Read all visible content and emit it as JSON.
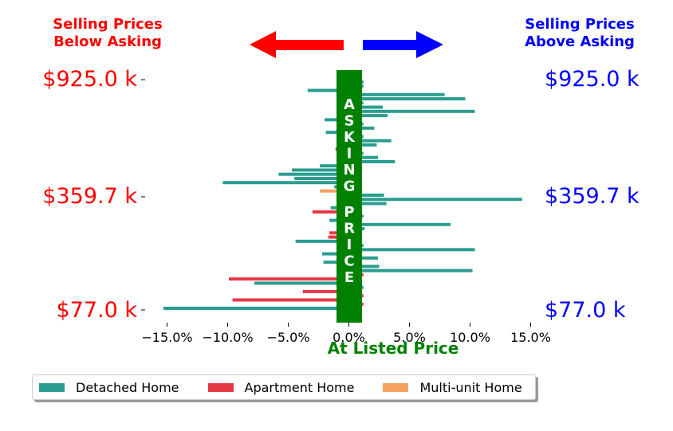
{
  "header": {
    "left_line1": "Selling Prices",
    "left_line2": "Below Asking",
    "right_line1": "Selling Prices",
    "right_line2": "Above Asking",
    "left_color": "#ff0000",
    "right_color": "#0000ff",
    "left_arrow_icon": "arrow-left-icon",
    "right_arrow_icon": "arrow-right-icon"
  },
  "price_labels": {
    "top": "$925.0 k",
    "middle": "$359.7 k",
    "bottom": "$77.0 k"
  },
  "band_text": "ASKING PRICE",
  "colors": {
    "band": "#008000",
    "detached": "#2a9d8f",
    "apartment": "#e63946",
    "multi": "#f4a261"
  },
  "chart_data": {
    "type": "bar",
    "orientation": "horizontal",
    "xlabel": "At Listed Price",
    "xlim": [
      -17,
      15.5
    ],
    "xticks": [
      -15,
      -10,
      -5,
      0,
      5,
      10,
      15
    ],
    "xtick_labels": [
      "−15.0%",
      "−10.0%",
      "−5.0%",
      "0.0%",
      "5.0%",
      "10.0%",
      "15.0%"
    ],
    "ytick_labels": [
      "$925.0 k",
      "$359.7 k",
      "$77.0 k"
    ],
    "legend_placement": "bottom",
    "legend": [
      "Detached Home",
      "Apartment Home",
      "Multi-unit Home"
    ],
    "bars": [
      {
        "type": "Detached Home",
        "value": 1.2
      },
      {
        "type": "Detached Home",
        "value": 1.2
      },
      {
        "type": "Detached Home",
        "value": -3.4
      },
      {
        "type": "Detached Home",
        "value": 7.9
      },
      {
        "type": "Detached Home",
        "value": 9.6
      },
      {
        "type": "Detached Home",
        "value": 1.2
      },
      {
        "type": "Detached Home",
        "value": 2.8
      },
      {
        "type": "Detached Home",
        "value": 10.4
      },
      {
        "type": "Detached Home",
        "value": 3.2
      },
      {
        "type": "Detached Home",
        "value": -2.0
      },
      {
        "type": "Detached Home",
        "value": 1.2
      },
      {
        "type": "Detached Home",
        "value": 2.1
      },
      {
        "type": "Detached Home",
        "value": -1.9
      },
      {
        "type": "Detached Home",
        "value": 1.2
      },
      {
        "type": "Detached Home",
        "value": 3.5
      },
      {
        "type": "Detached Home",
        "value": 2.3
      },
      {
        "type": "Apartment Home",
        "value": -1.1
      },
      {
        "type": "Detached Home",
        "value": 1.2
      },
      {
        "type": "Detached Home",
        "value": 2.4
      },
      {
        "type": "Detached Home",
        "value": 3.8
      },
      {
        "type": "Detached Home",
        "value": -2.4
      },
      {
        "type": "Detached Home",
        "value": -4.7
      },
      {
        "type": "Detached Home",
        "value": -5.8
      },
      {
        "type": "Detached Home",
        "value": -4.5
      },
      {
        "type": "Detached Home",
        "value": -10.4
      },
      {
        "type": "Detached Home",
        "value": -1.2
      },
      {
        "type": "Multi-unit Home",
        "value": -2.4
      },
      {
        "type": "Detached Home",
        "value": 2.9
      },
      {
        "type": "Detached Home",
        "value": 14.3
      },
      {
        "type": "Detached Home",
        "value": 3.1
      },
      {
        "type": "Detached Home",
        "value": -1.5
      },
      {
        "type": "Apartment Home",
        "value": -3.0
      },
      {
        "type": "Detached Home",
        "value": 1.2
      },
      {
        "type": "Detached Home",
        "value": -1.6
      },
      {
        "type": "Detached Home",
        "value": 8.4
      },
      {
        "type": "Detached Home",
        "value": 1.3
      },
      {
        "type": "Apartment Home",
        "value": -1.6
      },
      {
        "type": "Apartment Home",
        "value": -1.7
      },
      {
        "type": "Detached Home",
        "value": -4.4
      },
      {
        "type": "Detached Home",
        "value": 1.2
      },
      {
        "type": "Detached Home",
        "value": 10.4
      },
      {
        "type": "Detached Home",
        "value": -2.2
      },
      {
        "type": "Detached Home",
        "value": 2.4
      },
      {
        "type": "Detached Home",
        "value": -2.1
      },
      {
        "type": "Detached Home",
        "value": 2.5
      },
      {
        "type": "Detached Home",
        "value": 10.2
      },
      {
        "type": "Apartment Home",
        "value": 1.2
      },
      {
        "type": "Apartment Home",
        "value": -9.9
      },
      {
        "type": "Detached Home",
        "value": -7.8
      },
      {
        "type": "Detached Home",
        "value": 1.2
      },
      {
        "type": "Apartment Home",
        "value": -3.8
      },
      {
        "type": "Apartment Home",
        "value": 1.2
      },
      {
        "type": "Apartment Home",
        "value": -9.6
      },
      {
        "type": "Apartment Home",
        "value": 1.2
      },
      {
        "type": "Detached Home",
        "value": -15.3
      }
    ]
  }
}
